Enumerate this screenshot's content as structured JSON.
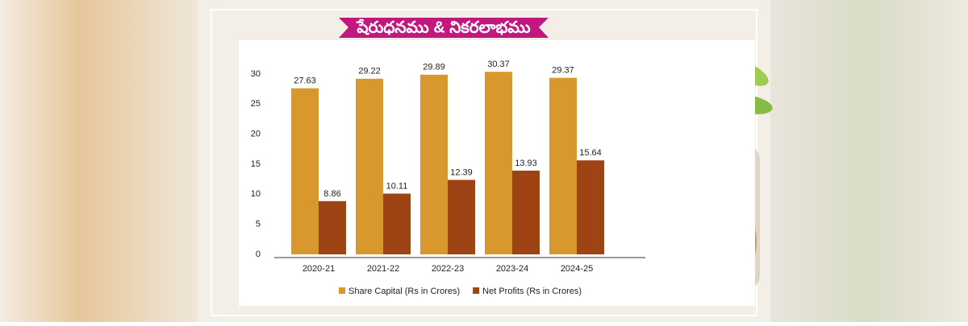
{
  "chart_data": {
    "type": "bar",
    "title": "షేరుధనము & నికరలాభము",
    "categories": [
      "2020-21",
      "2021-22",
      "2022-23",
      "2023-24",
      "2024-25"
    ],
    "series": [
      {
        "name": "Share Capital (Rs in Crores)",
        "color": "#d9982e",
        "values": [
          27.63,
          29.22,
          29.89,
          30.37,
          29.37
        ]
      },
      {
        "name": "Net Profits (Rs in Crores)",
        "color": "#9e4414",
        "values": [
          8.86,
          10.11,
          12.39,
          13.93,
          15.64
        ]
      }
    ],
    "ylim": [
      0,
      30
    ],
    "yticks": [
      0,
      5,
      10,
      15,
      20,
      25,
      30
    ],
    "grid": false,
    "legend": "bottom"
  }
}
